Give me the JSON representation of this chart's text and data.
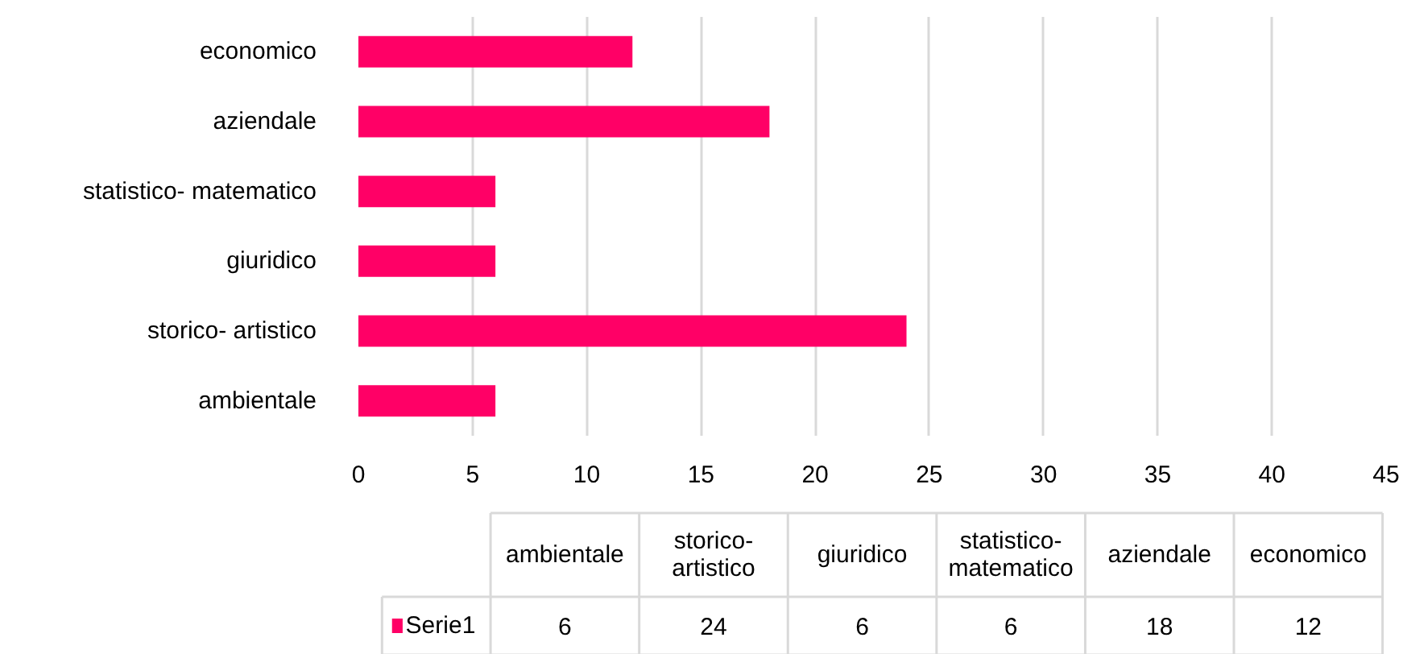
{
  "chart_data": [
    {
      "type": "bar",
      "orientation": "horizontal",
      "categories": [
        "economico",
        "aziendale",
        "statistico- matematico",
        "giuridico",
        "storico- artistico",
        "ambientale"
      ],
      "series": [
        {
          "color": "#ff0066",
          "values": [
            12,
            18,
            6,
            6,
            24,
            6
          ]
        }
      ],
      "xlim": [
        0,
        45
      ],
      "xticks": [
        0,
        5,
        10,
        15,
        20,
        25,
        30,
        35,
        40,
        45
      ],
      "grid": "x"
    },
    {
      "type": "other",
      "categories": [
        "ambientale",
        "storico- artistico",
        "giuridico",
        "statistico- matematico",
        "aziendale",
        "economico"
      ],
      "series": [
        {
          "name": "Serie1",
          "color": "#ff0066",
          "values": [
            6,
            24,
            6,
            6,
            18,
            12
          ]
        }
      ],
      "data_labels": true
    }
  ]
}
